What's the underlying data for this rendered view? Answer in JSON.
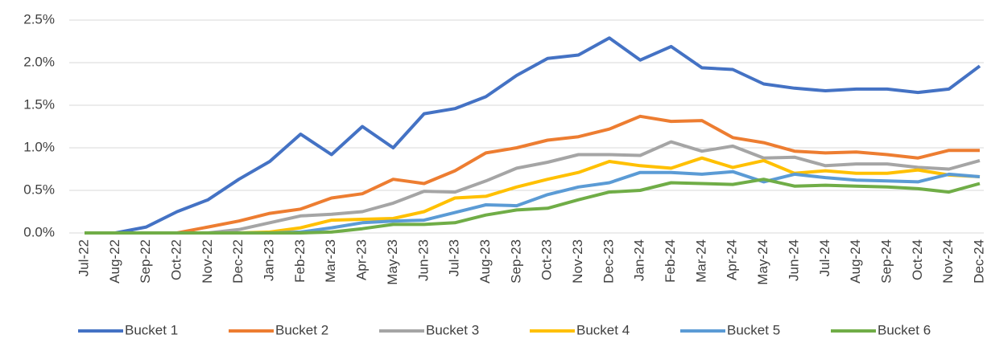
{
  "chart_data": {
    "type": "line",
    "categories": [
      "Jul-22",
      "Aug-22",
      "Sep-22",
      "Oct-22",
      "Nov-22",
      "Dec-22",
      "Jan-23",
      "Feb-23",
      "Mar-23",
      "Apr-23",
      "May-23",
      "Jun-23",
      "Jul-23",
      "Aug-23",
      "Sep-23",
      "Oct-23",
      "Nov-23",
      "Dec-23",
      "Jan-24",
      "Feb-24",
      "Mar-24",
      "Apr-24",
      "May-24",
      "Jun-24",
      "Jul-24",
      "Aug-24",
      "Sep-24",
      "Oct-24",
      "Nov-24",
      "Dec-24"
    ],
    "series": [
      {
        "name": "Bucket 1",
        "color": "#4472c4",
        "values": [
          0,
          0,
          0.07,
          0.25,
          0.39,
          0.63,
          0.84,
          1.16,
          0.92,
          1.25,
          1.0,
          1.4,
          1.46,
          1.6,
          1.85,
          2.05,
          2.09,
          2.29,
          2.03,
          2.19,
          1.94,
          1.92,
          1.75,
          1.7,
          1.67,
          1.69,
          1.69,
          1.65,
          1.69,
          1.96
        ]
      },
      {
        "name": "Bucket 2",
        "color": "#ed7d31",
        "values": [
          0,
          0,
          0,
          0,
          0.07,
          0.14,
          0.23,
          0.28,
          0.41,
          0.46,
          0.63,
          0.58,
          0.73,
          0.94,
          1.0,
          1.09,
          1.13,
          1.22,
          1.37,
          1.31,
          1.32,
          1.12,
          1.06,
          0.96,
          0.94,
          0.95,
          0.92,
          0.88,
          0.97,
          0.97
        ]
      },
      {
        "name": "Bucket 3",
        "color": "#a5a5a5",
        "values": [
          0,
          0,
          0,
          0,
          0,
          0.04,
          0.12,
          0.2,
          0.22,
          0.25,
          0.35,
          0.49,
          0.48,
          0.61,
          0.76,
          0.83,
          0.92,
          0.92,
          0.91,
          1.07,
          0.96,
          1.02,
          0.88,
          0.89,
          0.79,
          0.81,
          0.81,
          0.77,
          0.75,
          0.85
        ]
      },
      {
        "name": "Bucket 4",
        "color": "#ffc000",
        "values": [
          0,
          0,
          0,
          0,
          0,
          0,
          0.01,
          0.06,
          0.15,
          0.16,
          0.17,
          0.25,
          0.41,
          0.43,
          0.54,
          0.63,
          0.71,
          0.84,
          0.79,
          0.76,
          0.88,
          0.77,
          0.85,
          0.7,
          0.73,
          0.7,
          0.7,
          0.74,
          0.68,
          0.66
        ]
      },
      {
        "name": "Bucket 5",
        "color": "#5b9bd5",
        "values": [
          0,
          0,
          0,
          0,
          0,
          0,
          0,
          0.01,
          0.06,
          0.12,
          0.14,
          0.15,
          0.24,
          0.33,
          0.32,
          0.45,
          0.54,
          0.59,
          0.71,
          0.71,
          0.69,
          0.72,
          0.6,
          0.69,
          0.65,
          0.62,
          0.61,
          0.6,
          0.69,
          0.66
        ]
      },
      {
        "name": "Bucket 6",
        "color": "#70ad47",
        "values": [
          0,
          0,
          0,
          0,
          0,
          0,
          0,
          0,
          0.01,
          0.05,
          0.1,
          0.1,
          0.12,
          0.21,
          0.27,
          0.29,
          0.39,
          0.48,
          0.5,
          0.59,
          0.58,
          0.57,
          0.63,
          0.55,
          0.56,
          0.55,
          0.54,
          0.52,
          0.48,
          0.58
        ]
      }
    ],
    "ylim": [
      0,
      2.5
    ],
    "yticks": [
      {
        "value": 0,
        "label": "0.0%"
      },
      {
        "value": 0.5,
        "label": "0.5%"
      },
      {
        "value": 1,
        "label": "1.0%"
      },
      {
        "value": 1.5,
        "label": "1.5%"
      },
      {
        "value": 2,
        "label": "2.0%"
      },
      {
        "value": 2.5,
        "label": "2.5%"
      }
    ],
    "grid": true,
    "legend": "bottom"
  }
}
